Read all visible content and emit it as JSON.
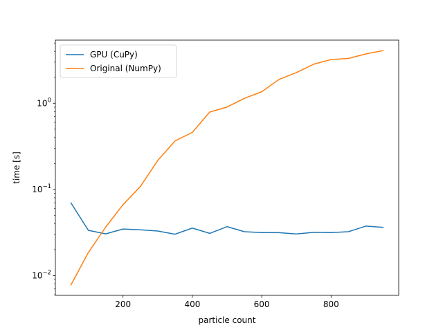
{
  "chart_data": {
    "type": "line",
    "xlabel": "particle count",
    "ylabel": "time [s]",
    "yscale": "log",
    "xlim": [
      5,
      995
    ],
    "ylim": [
      0.0059,
      5.4
    ],
    "x_ticks": [
      200,
      400,
      600,
      800
    ],
    "y_ticks": [
      {
        "value": 0.01,
        "base": "10",
        "exp": "−2"
      },
      {
        "value": 0.1,
        "base": "10",
        "exp": "−1"
      },
      {
        "value": 1,
        "base": "10",
        "exp": "0"
      }
    ],
    "grid": false,
    "legend": "upper-left",
    "x": [
      50,
      100,
      150,
      200,
      250,
      300,
      350,
      400,
      450,
      500,
      550,
      600,
      650,
      700,
      750,
      800,
      850,
      900,
      950
    ],
    "series": [
      {
        "name": "GPU (CuPy)",
        "color": "#1f77b4",
        "values": [
          0.0697,
          0.0335,
          0.0305,
          0.0347,
          0.034,
          0.0329,
          0.0302,
          0.0356,
          0.0309,
          0.037,
          0.0323,
          0.0316,
          0.0315,
          0.0304,
          0.0318,
          0.0316,
          0.0323,
          0.0375,
          0.0363
        ]
      },
      {
        "name": "Original (NumPy)",
        "color": "#ff7f0e",
        "values": [
          0.0078,
          0.0185,
          0.0365,
          0.0665,
          0.108,
          0.216,
          0.365,
          0.459,
          0.79,
          0.904,
          1.14,
          1.36,
          1.89,
          2.27,
          2.84,
          3.21,
          3.31,
          3.73,
          4.08
        ]
      }
    ]
  }
}
